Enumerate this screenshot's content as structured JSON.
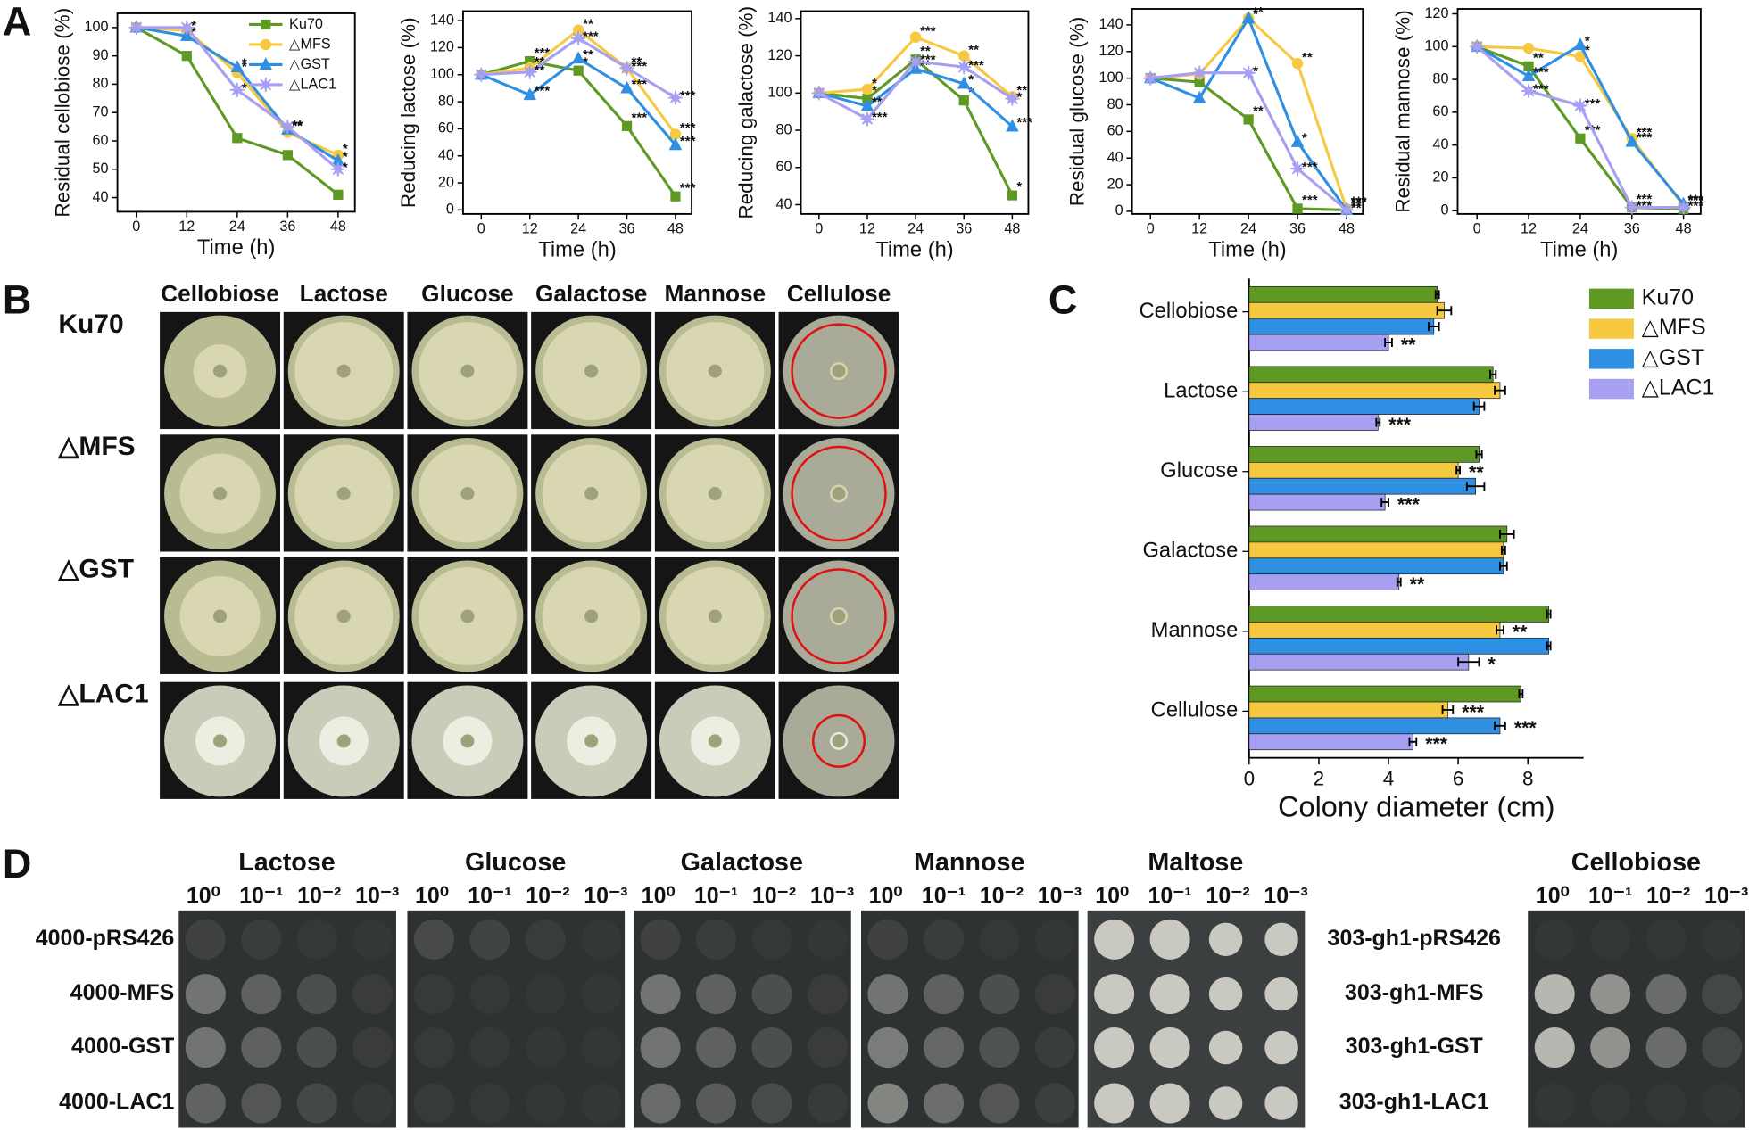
{
  "panel_labels": [
    "A",
    "B",
    "C",
    "D"
  ],
  "chart_data": [
    {
      "type": "line",
      "ylabel": "Residual cellobiose (%)",
      "xlabel": "Time (h)",
      "x": [
        0,
        12,
        24,
        36,
        48
      ],
      "xlim": [
        -4.5,
        52
      ],
      "xticks": [
        0,
        12,
        24,
        36,
        48
      ],
      "ylim": [
        35,
        105
      ],
      "yticks": [
        40,
        50,
        60,
        70,
        80,
        90,
        100
      ],
      "legend": "upper right",
      "series": [
        {
          "name": "Ku70",
          "color": "#5e9a23",
          "marker": "square",
          "values": [
            100,
            90,
            61,
            55,
            41
          ],
          "annotations": [
            null,
            null,
            null,
            null,
            null
          ]
        },
        {
          "name": "△MFS",
          "color": "#f7c940",
          "marker": "circle",
          "values": [
            100,
            99,
            84,
            63,
            55
          ],
          "annotations": [
            null,
            null,
            "*",
            "**",
            "*"
          ]
        },
        {
          "name": "△GST",
          "color": "#2f8fe3",
          "marker": "triangle",
          "values": [
            100,
            97,
            86,
            64,
            53
          ],
          "annotations": [
            null,
            "*",
            "*",
            "**",
            "*"
          ]
        },
        {
          "name": "△LAC1",
          "color": "#a69ff2",
          "marker": "star",
          "values": [
            100,
            100,
            78,
            65,
            50
          ],
          "annotations": [
            null,
            "*",
            "*",
            "**",
            "*"
          ]
        }
      ]
    },
    {
      "type": "line",
      "ylabel": "Reducing lactose (%)",
      "xlabel": "Time (h)",
      "x": [
        0,
        12,
        24,
        36,
        48
      ],
      "xlim": [
        -4.5,
        52
      ],
      "xticks": [
        0,
        12,
        24,
        36,
        48
      ],
      "ylim": [
        -3,
        147
      ],
      "yticks": [
        0,
        20,
        40,
        60,
        80,
        100,
        120,
        140
      ],
      "series": [
        {
          "color": "#5e9a23",
          "marker": "square",
          "values": [
            100,
            110,
            103,
            62,
            10
          ],
          "annotations": [
            null,
            "***",
            "*",
            "***",
            "***"
          ]
        },
        {
          "color": "#f7c940",
          "marker": "circle",
          "values": [
            100,
            105,
            133,
            105,
            56
          ],
          "annotations": [
            null,
            "**",
            "**",
            "**",
            "***"
          ]
        },
        {
          "color": "#2f8fe3",
          "marker": "triangle",
          "values": [
            100,
            85,
            112,
            90,
            48
          ],
          "annotations": [
            null,
            "***",
            "**",
            "***",
            "***"
          ]
        },
        {
          "color": "#a69ff2",
          "marker": "star",
          "values": [
            100,
            102,
            127,
            105,
            83
          ],
          "annotations": [
            null,
            "**",
            "***",
            "***",
            "***"
          ]
        }
      ]
    },
    {
      "type": "line",
      "ylabel": "Reducing galactose (%)",
      "xlabel": "Time (h)",
      "x": [
        0,
        12,
        24,
        36,
        48
      ],
      "xlim": [
        -4.5,
        52
      ],
      "xticks": [
        0,
        12,
        24,
        36,
        48
      ],
      "ylim": [
        35,
        144
      ],
      "yticks": [
        40,
        60,
        80,
        100,
        120,
        140
      ],
      "series": [
        {
          "color": "#5e9a23",
          "marker": "square",
          "values": [
            100,
            97,
            118,
            96,
            45
          ],
          "annotations": [
            null,
            "*",
            "**",
            "*",
            "*"
          ]
        },
        {
          "color": "#f7c940",
          "marker": "circle",
          "values": [
            100,
            102,
            130,
            120,
            98
          ],
          "annotations": [
            null,
            "*",
            "***",
            "**",
            "**"
          ]
        },
        {
          "color": "#2f8fe3",
          "marker": "triangle",
          "values": [
            100,
            93,
            113,
            105,
            82
          ],
          "annotations": [
            null,
            "**",
            "**",
            "*",
            "***"
          ]
        },
        {
          "color": "#a69ff2",
          "marker": "star",
          "values": [
            100,
            86,
            117,
            114,
            97
          ],
          "annotations": [
            null,
            "***",
            "***",
            "***",
            "*"
          ]
        }
      ]
    },
    {
      "type": "line",
      "ylabel": "Residual glucose (%)",
      "xlabel": "Time (h)",
      "x": [
        0,
        12,
        24,
        36,
        48
      ],
      "xlim": [
        -4.5,
        52
      ],
      "xticks": [
        0,
        12,
        24,
        36,
        48
      ],
      "ylim": [
        -2,
        152
      ],
      "yticks": [
        0,
        20,
        40,
        60,
        80,
        100,
        120,
        140
      ],
      "series": [
        {
          "color": "#5e9a23",
          "marker": "square",
          "values": [
            100,
            97,
            69,
            2,
            1
          ],
          "annotations": [
            null,
            null,
            "**",
            "***",
            "***"
          ]
        },
        {
          "color": "#f7c940",
          "marker": "circle",
          "values": [
            100,
            103,
            145,
            111,
            2
          ],
          "annotations": [
            null,
            null,
            "**",
            "**",
            "***"
          ]
        },
        {
          "color": "#2f8fe3",
          "marker": "triangle",
          "values": [
            100,
            85,
            145,
            52,
            1
          ],
          "annotations": [
            null,
            null,
            "*",
            "*",
            "**"
          ]
        },
        {
          "color": "#a69ff2",
          "marker": "star",
          "values": [
            100,
            104,
            104,
            32,
            1
          ],
          "annotations": [
            null,
            null,
            "*",
            "***",
            "**"
          ]
        }
      ]
    },
    {
      "type": "line",
      "ylabel": "Residual mannose (%)",
      "xlabel": "Time (h)",
      "x": [
        0,
        12,
        24,
        36,
        48
      ],
      "xlim": [
        -4.5,
        52
      ],
      "xticks": [
        0,
        12,
        24,
        36,
        48
      ],
      "ylim": [
        -2,
        123
      ],
      "yticks": [
        0,
        20,
        40,
        60,
        80,
        100,
        120
      ],
      "series": [
        {
          "color": "#5e9a23",
          "marker": "square",
          "values": [
            100,
            88,
            44,
            2,
            1
          ],
          "annotations": [
            null,
            "**",
            "***",
            "***",
            "***"
          ]
        },
        {
          "color": "#f7c940",
          "marker": "circle",
          "values": [
            100,
            99,
            94,
            44,
            3
          ],
          "annotations": [
            null,
            null,
            "*",
            "***",
            "***"
          ]
        },
        {
          "color": "#2f8fe3",
          "marker": "triangle",
          "values": [
            100,
            82,
            101,
            42,
            4
          ],
          "annotations": [
            null,
            "***",
            "*",
            "***",
            "***"
          ]
        },
        {
          "color": "#a69ff2",
          "marker": "star",
          "values": [
            100,
            73,
            64,
            2,
            2
          ],
          "annotations": [
            null,
            "***",
            "***",
            "***",
            "***"
          ]
        }
      ]
    },
    {
      "type": "bar",
      "orientation": "horizontal",
      "xlabel": "Colony diameter (cm)",
      "categories": [
        "Cellobiose",
        "Lactose",
        "Glucose",
        "Galactose",
        "Mannose",
        "Cellulose"
      ],
      "xlim": [
        0,
        9.6
      ],
      "xticks": [
        0,
        2,
        4,
        6,
        8
      ],
      "legend": "upper right",
      "series": [
        {
          "name": "Ku70",
          "color": "#5e9a23",
          "values": [
            5.4,
            7.0,
            6.6,
            7.4,
            8.6,
            7.8
          ],
          "errors": [
            0.05,
            0.08,
            0.08,
            0.2,
            0.05,
            0.05
          ],
          "annotations": [
            null,
            null,
            null,
            null,
            null,
            null
          ]
        },
        {
          "name": "△MFS",
          "color": "#f7c940",
          "values": [
            5.6,
            7.2,
            6.0,
            7.3,
            7.2,
            5.7
          ],
          "errors": [
            0.2,
            0.15,
            0.05,
            0.05,
            0.1,
            0.15
          ],
          "annotations": [
            null,
            null,
            "**",
            null,
            "**",
            "***"
          ]
        },
        {
          "name": "△GST",
          "color": "#2f8fe3",
          "values": [
            5.3,
            6.6,
            6.5,
            7.3,
            8.6,
            7.2
          ],
          "errors": [
            0.15,
            0.15,
            0.25,
            0.1,
            0.05,
            0.15
          ],
          "annotations": [
            null,
            null,
            null,
            null,
            null,
            "***"
          ]
        },
        {
          "name": "△LAC1",
          "color": "#a69ff2",
          "values": [
            4.0,
            3.7,
            3.9,
            4.3,
            6.3,
            4.7
          ],
          "errors": [
            0.1,
            0.05,
            0.1,
            0.05,
            0.3,
            0.1
          ],
          "annotations": [
            "**",
            "***",
            "***",
            "**",
            "*",
            "***"
          ]
        }
      ]
    }
  ],
  "panel_b": {
    "columns": [
      "Cellobiose",
      "Lactose",
      "Glucose",
      "Galactose",
      "Mannose",
      "Cellulose"
    ],
    "rows": [
      "Ku70",
      "△MFS",
      "△GST",
      "△LAC1"
    ]
  },
  "panel_d": {
    "groups": [
      "Lactose",
      "Glucose",
      "Galactose",
      "Mannose",
      "Maltose",
      "Cellobiose"
    ],
    "dilutions": [
      "10⁰",
      "10⁻¹",
      "10⁻²",
      "10⁻³"
    ],
    "rows_left": [
      "4000-pRS426",
      "4000-MFS",
      "4000-GST",
      "4000-LAC1"
    ],
    "rows_right": [
      "303-gh1-pRS426",
      "303-gh1-MFS",
      "303-gh1-GST",
      "303-gh1-LAC1"
    ]
  }
}
